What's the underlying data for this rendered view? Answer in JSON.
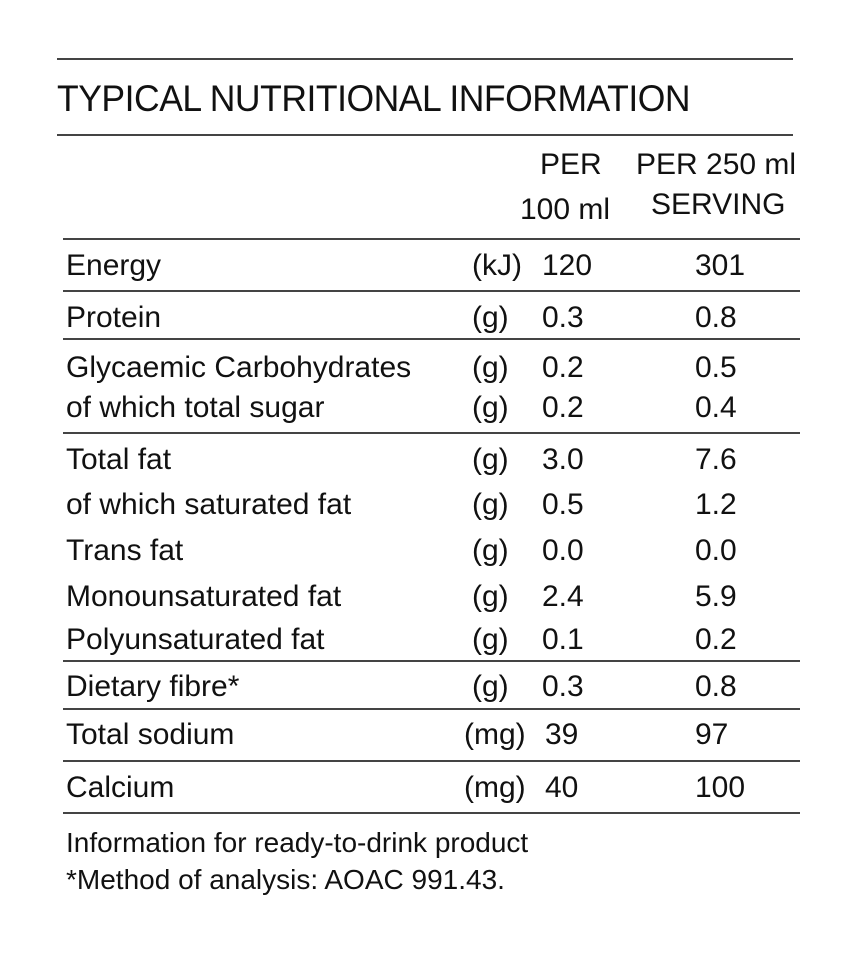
{
  "title": "TYPICAL NUTRITIONAL INFORMATION",
  "columns": {
    "per100_line1": "PER",
    "per100_line2": "100 ml",
    "per250_line1": "PER 250 ml",
    "per250_line2": "SERVING"
  },
  "rows": [
    {
      "label": "Energy",
      "unit": "(kJ)",
      "per100": "120",
      "per250": "301"
    },
    {
      "label": "Protein",
      "unit": "(g)",
      "per100": "0.3",
      "per250": "0.8"
    },
    {
      "label": "Glycaemic Carbohydrates",
      "unit": "(g)",
      "per100": "0.2",
      "per250": "0.5"
    },
    {
      "label": "of which total sugar",
      "unit": "(g)",
      "per100": "0.2",
      "per250": "0.4"
    },
    {
      "label": "Total fat",
      "unit": "(g)",
      "per100": "3.0",
      "per250": "7.6"
    },
    {
      "label": "of which saturated fat",
      "unit": "(g)",
      "per100": "0.5",
      "per250": "1.2"
    },
    {
      "label": "Trans fat",
      "unit": "(g)",
      "per100": "0.0",
      "per250": "0.0"
    },
    {
      "label": "Monounsaturated fat",
      "unit": "(g)",
      "per100": "2.4",
      "per250": "5.9"
    },
    {
      "label": "Polyunsaturated fat",
      "unit": "(g)",
      "per100": "0.1",
      "per250": "0.2"
    },
    {
      "label": "Dietary fibre*",
      "unit": "(g)",
      "per100": "0.3",
      "per250": "0.8"
    },
    {
      "label": "Total sodium",
      "unit": "(mg)",
      "per100": "39",
      "per250": "97"
    },
    {
      "label": "Calcium",
      "unit": "(mg)",
      "per100": "40",
      "per250": "100"
    }
  ],
  "footnotes": [
    "Information for ready-to-drink product",
    "*Method of analysis: AOAC 991.43."
  ]
}
